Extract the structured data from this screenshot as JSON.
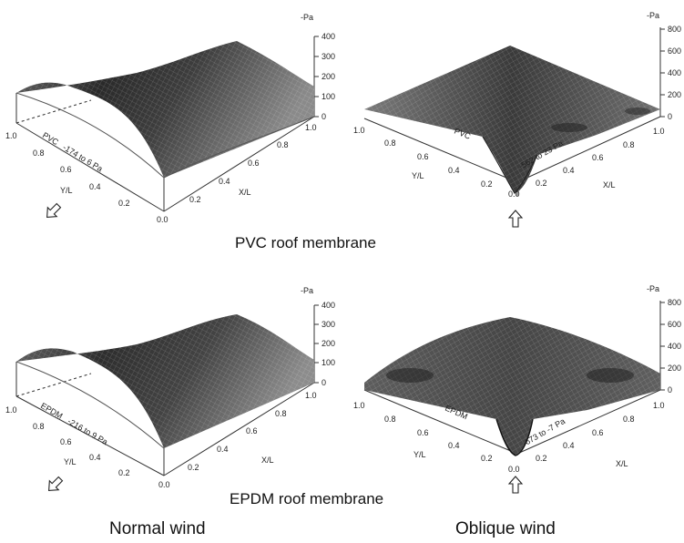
{
  "rows": [
    {
      "title": "PVC roof membrane",
      "panels": [
        {
          "id": "pvc-normal",
          "material": "PVC",
          "range": "-174 to 6 Pa",
          "z_unit": "-Pa",
          "z_ticks": [
            "400",
            "300",
            "200",
            "100",
            "0"
          ],
          "x_label": "X/L",
          "y_label": "Y/L",
          "x_ticks": [
            "0.0",
            "0.2",
            "0.4",
            "0.6",
            "0.8",
            "1.0"
          ],
          "y_ticks": [
            "1.0",
            "0.8",
            "0.6",
            "0.4",
            "0.2"
          ],
          "wind_arrow": "diagonal-arrow-icon"
        },
        {
          "id": "pvc-oblique",
          "material": "PVC",
          "range": "-562 to 23 Pa",
          "z_unit": "-Pa",
          "z_ticks": [
            "800",
            "600",
            "400",
            "200",
            "0"
          ],
          "x_label": "X/L",
          "y_label": "Y/L",
          "x_ticks": [
            "0.0",
            "0.2",
            "0.4",
            "0.6",
            "0.8",
            "1.0"
          ],
          "y_ticks": [
            "1.0",
            "0.8",
            "0.6",
            "0.4",
            "0.2"
          ],
          "wind_arrow": "up-arrow-icon"
        }
      ]
    },
    {
      "title": "EPDM roof membrane",
      "panels": [
        {
          "id": "epdm-normal",
          "material": "EPDM",
          "range": "-216 to 9 Pa",
          "z_unit": "-Pa",
          "z_ticks": [
            "400",
            "300",
            "200",
            "100",
            "0"
          ],
          "x_label": "X/L",
          "y_label": "Y/L",
          "x_ticks": [
            "0.0",
            "0.2",
            "0.4",
            "0.6",
            "0.8",
            "1.0"
          ],
          "y_ticks": [
            "1.0",
            "0.8",
            "0.6",
            "0.4",
            "0.2"
          ],
          "wind_arrow": "diagonal-arrow-icon"
        },
        {
          "id": "epdm-oblique",
          "material": "EPDM",
          "range": "-673 to -7 Pa",
          "z_unit": "-Pa",
          "z_ticks": [
            "800",
            "600",
            "400",
            "200",
            "0"
          ],
          "x_label": "X/L",
          "y_label": "Y/L",
          "x_ticks": [
            "0.0",
            "0.2",
            "0.4",
            "0.6",
            "0.8",
            "1.0"
          ],
          "y_ticks": [
            "1.0",
            "0.8",
            "0.6",
            "0.4",
            "0.2"
          ],
          "wind_arrow": "up-arrow-icon"
        }
      ]
    }
  ],
  "columns": [
    "Normal wind",
    "Oblique wind"
  ]
}
